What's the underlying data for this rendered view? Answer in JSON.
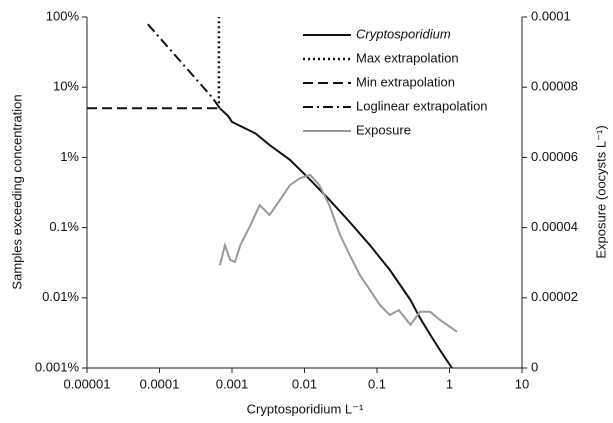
{
  "chart_data": {
    "type": "line",
    "xlabel": "Cryptosporidium L⁻¹",
    "ylabel": "Samples exceeding concentration",
    "y2label": "Exposure (oocysts L⁻¹)",
    "xscale": "log",
    "yscale": "log",
    "xlim": [
      1e-05,
      10
    ],
    "xticks": [
      1e-05,
      0.0001,
      0.001,
      0.01,
      0.1,
      1,
      10
    ],
    "ylim": [
      0.001,
      100
    ],
    "yticks": [
      {
        "value": 0.001,
        "label": "0.001%"
      },
      {
        "value": 0.01,
        "label": "0.01%"
      },
      {
        "value": 0.1,
        "label": "0.1%"
      },
      {
        "value": 1,
        "label": "1%"
      },
      {
        "value": 10,
        "label": "10%"
      },
      {
        "value": 100,
        "label": "100%"
      }
    ],
    "y2lim": [
      0,
      0.0001
    ],
    "y2ticks": [
      0,
      2e-05,
      4e-05,
      6e-05,
      8e-05,
      0.0001
    ],
    "grid": false,
    "legend": "upper right",
    "series": [
      {
        "name": "Cryptosporidium",
        "color": "#111111",
        "dash": "solid",
        "italic": true,
        "x": [
          0.00068,
          0.00088,
          0.001,
          0.0013,
          0.0021,
          0.0033,
          0.0063,
          0.012,
          0.022,
          0.042,
          0.08,
          0.15,
          0.29,
          0.39,
          0.54,
          0.74,
          1.08
        ],
        "values": [
          5,
          3.9,
          3.2,
          2.8,
          2.2,
          1.5,
          0.92,
          0.48,
          0.25,
          0.12,
          0.056,
          0.025,
          0.0093,
          0.0052,
          0.003,
          0.0018,
          0.001
        ]
      },
      {
        "name": "Max extrapolation",
        "color": "#111111",
        "dash": "dotted",
        "x": [
          0.00066,
          0.00066
        ],
        "values": [
          5,
          100
        ]
      },
      {
        "name": "Min extrapolation",
        "color": "#111111",
        "dash": "dashed",
        "x": [
          1e-05,
          0.00066
        ],
        "values": [
          5,
          5
        ]
      },
      {
        "name": "Loglinear extrapolation",
        "color": "#111111",
        "dash": "dashdot",
        "x": [
          6.9e-05,
          0.00053,
          0.00068
        ],
        "values": [
          79,
          7.2,
          5
        ]
      },
      {
        "name": "Exposure",
        "color": "#999999",
        "dash": "solid",
        "axis": "y2",
        "x": [
          0.00068,
          0.0008,
          0.00094,
          0.0011,
          0.0013,
          0.0018,
          0.0024,
          0.0033,
          0.0046,
          0.0063,
          0.0087,
          0.012,
          0.016,
          0.022,
          0.031,
          0.042,
          0.058,
          0.08,
          0.11,
          0.15,
          0.2,
          0.29,
          0.39,
          0.54,
          0.74,
          1.27
        ],
        "values": [
          2.93e-05,
          3.5e-05,
          3.08e-05,
          3.02e-05,
          3.5e-05,
          4.07e-05,
          4.64e-05,
          4.36e-05,
          4.79e-05,
          5.21e-05,
          5.41e-05,
          5.5e-05,
          5.21e-05,
          4.64e-05,
          3.79e-05,
          3.22e-05,
          2.65e-05,
          2.22e-05,
          1.79e-05,
          1.51e-05,
          1.65e-05,
          1.23e-05,
          1.6e-05,
          1.6e-05,
          1.37e-05,
          1.03e-05
        ]
      }
    ]
  }
}
